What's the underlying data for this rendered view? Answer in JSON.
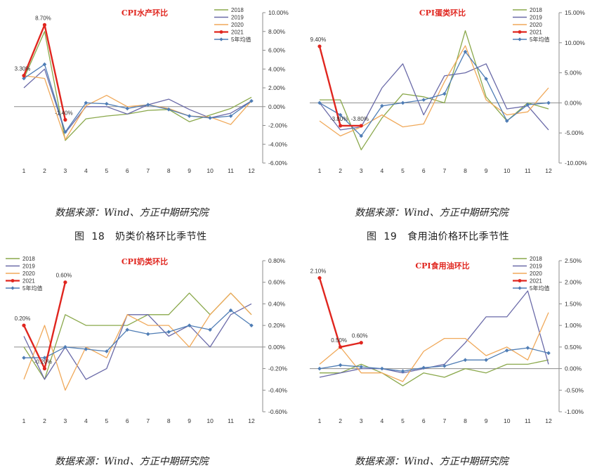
{
  "colors": {
    "2018": "#8aa84b",
    "2019": "#6a6aa8",
    "2020": "#f0a95a",
    "2021": "#e0261f",
    "avg": "#4f7db5",
    "title": "#e0261f"
  },
  "source_text_1": "数据来源：Wind、方正中期研究院",
  "source_text_2": "数据来源：Wind、方正中期研究院",
  "source_text_3": "数据来源：Wind、方正中期研究院",
  "source_text_4": "数据来源：Wind、方正中期研究院",
  "caption_left": {
    "prefix": "图",
    "num": "18",
    "text": "奶类价格环比季节性"
  },
  "caption_right": {
    "prefix": "图",
    "num": "19",
    "text": "食用油价格环比季节性"
  },
  "chart_data": [
    {
      "type": "line",
      "title": "CPI水产环比",
      "x": [
        "1",
        "2",
        "3",
        "4",
        "5",
        "6",
        "7",
        "8",
        "9",
        "10",
        "11",
        "12"
      ],
      "yticks": [
        "10.00%",
        "8.00%",
        "6.00%",
        "4.00%",
        "2.00%",
        "0.00%",
        "-2.00%",
        "-4.00%",
        "-6.00%"
      ],
      "ylim": [
        -6,
        10
      ],
      "series": [
        {
          "name": "2018",
          "values": [
            3.0,
            8.0,
            -3.6,
            -1.3,
            -1.0,
            -0.8,
            -0.4,
            -0.3,
            -1.6,
            -0.9,
            -0.2,
            1.0
          ]
        },
        {
          "name": "2019",
          "values": [
            2.0,
            4.0,
            -2.8,
            0.0,
            0.0,
            -0.8,
            0.2,
            0.8,
            -0.3,
            -1.2,
            -0.7,
            0.6
          ]
        },
        {
          "name": "2020",
          "values": [
            3.3,
            3.0,
            -3.5,
            0.1,
            1.2,
            0.0,
            0.2,
            -0.2,
            -1.0,
            -1.1,
            -1.9,
            0.6
          ]
        },
        {
          "name": "2021",
          "values": [
            3.3,
            8.7,
            -1.4
          ]
        },
        {
          "name": "5年均值",
          "values": [
            3.0,
            4.5,
            -2.7,
            0.4,
            0.3,
            -0.2,
            0.2,
            -0.3,
            -1.0,
            -1.2,
            -1.0,
            0.6
          ]
        }
      ],
      "labels": [
        {
          "series": 3,
          "index": 0,
          "text": "3.30%"
        },
        {
          "series": 3,
          "index": 1,
          "text": "8.70%"
        },
        {
          "series": 3,
          "index": 2,
          "text": "-1.40%"
        }
      ]
    },
    {
      "type": "line",
      "title": "CPI蛋类环比",
      "x": [
        "1",
        "2",
        "3",
        "4",
        "5",
        "6",
        "7",
        "8",
        "9",
        "10",
        "11",
        "12"
      ],
      "yticks": [
        "15.00%",
        "10.00%",
        "5.00%",
        "0.00%",
        "-5.00%",
        "-10.00%"
      ],
      "ylim": [
        -10,
        15
      ],
      "series": [
        {
          "name": "2018",
          "values": [
            0.5,
            0.5,
            -7.8,
            -2.5,
            1.5,
            1.0,
            0.0,
            12.0,
            1.0,
            -3.0,
            0.0,
            -1.0
          ]
        },
        {
          "name": "2019",
          "values": [
            0.0,
            -4.5,
            -4.0,
            2.5,
            6.5,
            -2.0,
            4.5,
            5.0,
            6.5,
            -1.0,
            -0.5,
            -4.5
          ]
        },
        {
          "name": "2020",
          "values": [
            -3.0,
            -5.5,
            -4.0,
            -2.0,
            -4.0,
            -3.5,
            3.5,
            9.5,
            0.5,
            -2.0,
            -1.5,
            2.5
          ]
        },
        {
          "name": "2021",
          "values": [
            9.4,
            -3.8,
            -3.8
          ]
        },
        {
          "name": "5年均值",
          "values": [
            0.0,
            -2.0,
            -5.5,
            -0.5,
            0.0,
            0.5,
            1.5,
            8.5,
            4.0,
            -3.0,
            -0.3,
            0.0
          ]
        }
      ],
      "labels": [
        {
          "series": 3,
          "index": 0,
          "text": "9.40%"
        },
        {
          "series": 3,
          "index": 1,
          "text": "-3.80%"
        },
        {
          "series": 3,
          "index": 2,
          "text": "-3.80%"
        }
      ]
    },
    {
      "type": "line",
      "title": "CPI奶类环比",
      "x": [
        "1",
        "2",
        "3",
        "4",
        "5",
        "6",
        "7",
        "8",
        "9",
        "10",
        "11",
        "12"
      ],
      "yticks": [
        "0.80%",
        "0.60%",
        "0.40%",
        "0.20%",
        "0.00%",
        "-0.20%",
        "-0.40%",
        "-0.60%"
      ],
      "ylim": [
        -0.6,
        0.8
      ],
      "series": [
        {
          "name": "2018",
          "values": [
            0.0,
            -0.3,
            0.3,
            0.2,
            0.2,
            0.2,
            0.3,
            0.3,
            0.5,
            0.3,
            0.5,
            0.3
          ]
        },
        {
          "name": "2019",
          "values": [
            0.1,
            -0.3,
            0.0,
            -0.3,
            -0.2,
            0.3,
            0.3,
            0.1,
            0.2,
            0.0,
            0.3,
            0.4
          ]
        },
        {
          "name": "2020",
          "values": [
            -0.3,
            0.2,
            -0.4,
            0.0,
            -0.1,
            0.3,
            0.2,
            0.2,
            0.0,
            0.3,
            0.5,
            0.3
          ]
        },
        {
          "name": "2021",
          "values": [
            0.2,
            -0.2,
            0.6
          ]
        },
        {
          "name": "5年均值",
          "values": [
            -0.1,
            -0.1,
            0.0,
            -0.02,
            -0.04,
            0.16,
            0.12,
            0.14,
            0.2,
            0.16,
            0.34,
            0.2
          ]
        }
      ],
      "labels": [
        {
          "series": 3,
          "index": 0,
          "text": "0.20%"
        },
        {
          "series": 3,
          "index": 1,
          "text": "-0.20%"
        },
        {
          "series": 3,
          "index": 2,
          "text": "0.60%"
        }
      ]
    },
    {
      "type": "line",
      "title": "CPI食用油环比",
      "x": [
        "1",
        "2",
        "3",
        "4",
        "5",
        "6",
        "7",
        "8",
        "9",
        "10",
        "11",
        "12"
      ],
      "yticks": [
        "2.50%",
        "2.00%",
        "1.50%",
        "1.00%",
        "0.50%",
        "0.00%",
        "-0.50%",
        "-1.00%"
      ],
      "ylim": [
        -1,
        2.5
      ],
      "series": [
        {
          "name": "2018",
          "values": [
            -0.1,
            -0.1,
            0.1,
            -0.1,
            -0.4,
            -0.1,
            -0.2,
            0.0,
            -0.1,
            0.1,
            0.1,
            0.2
          ]
        },
        {
          "name": "2019",
          "values": [
            -0.2,
            -0.1,
            0.0,
            0.0,
            -0.1,
            0.0,
            0.1,
            0.6,
            1.2,
            1.2,
            1.8,
            0.1
          ]
        },
        {
          "name": "2020",
          "values": [
            0.1,
            0.5,
            -0.1,
            -0.1,
            -0.3,
            0.4,
            0.7,
            0.7,
            0.3,
            0.5,
            0.2,
            1.3
          ]
        },
        {
          "name": "2021",
          "values": [
            2.1,
            0.5,
            0.6
          ]
        },
        {
          "name": "5年均值",
          "values": [
            0.0,
            0.08,
            0.04,
            0.0,
            -0.06,
            0.02,
            0.06,
            0.2,
            0.2,
            0.42,
            0.48,
            0.36
          ]
        }
      ],
      "labels": [
        {
          "series": 3,
          "index": 0,
          "text": "2.10%"
        },
        {
          "series": 3,
          "index": 1,
          "text": "0.50%"
        },
        {
          "series": 3,
          "index": 2,
          "text": "0.60%"
        }
      ]
    }
  ]
}
